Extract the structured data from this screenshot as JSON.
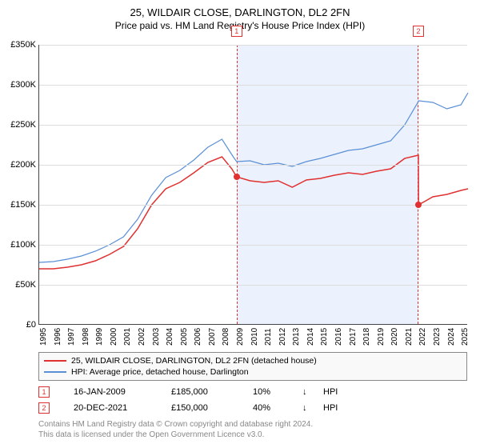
{
  "title": "25, WILDAIR CLOSE, DARLINGTON, DL2 2FN",
  "subtitle": "Price paid vs. HM Land Registry's House Price Index (HPI)",
  "chart": {
    "type": "line",
    "ylim": [
      0,
      350000
    ],
    "ytick_step": 50000,
    "yticks_labels": [
      "£0",
      "£50K",
      "£100K",
      "£150K",
      "£200K",
      "£250K",
      "£300K",
      "£350K"
    ],
    "x_start_year": 1995,
    "x_end_year": 2025.5,
    "x_ticks": [
      1995,
      1996,
      1997,
      1998,
      1999,
      2000,
      2001,
      2002,
      2003,
      2004,
      2005,
      2006,
      2007,
      2008,
      2009,
      2010,
      2011,
      2012,
      2013,
      2014,
      2015,
      2016,
      2017,
      2018,
      2019,
      2020,
      2021,
      2022,
      2023,
      2024,
      2025
    ],
    "grid_color": "#dcdcdc",
    "background_color": "#ffffff",
    "shaded_region": {
      "start": 2009.04,
      "end": 2021.97,
      "fill": "rgba(100,149,237,0.12)",
      "border": "#e03030"
    },
    "series": [
      {
        "name": "property",
        "label": "25, WILDAIR CLOSE, DARLINGTON, DL2 2FN (detached house)",
        "color": "#e03030",
        "width": 1.5,
        "data": [
          [
            1995,
            70000
          ],
          [
            1996,
            70000
          ],
          [
            1997,
            72000
          ],
          [
            1998,
            75000
          ],
          [
            1999,
            80000
          ],
          [
            2000,
            88000
          ],
          [
            2001,
            98000
          ],
          [
            2002,
            120000
          ],
          [
            2003,
            150000
          ],
          [
            2004,
            170000
          ],
          [
            2005,
            178000
          ],
          [
            2006,
            190000
          ],
          [
            2007,
            203000
          ],
          [
            2008,
            210000
          ],
          [
            2008.7,
            195000
          ],
          [
            2009.04,
            185000
          ],
          [
            2010,
            180000
          ],
          [
            2011,
            178000
          ],
          [
            2012,
            180000
          ],
          [
            2013,
            172000
          ],
          [
            2014,
            181000
          ],
          [
            2015,
            183000
          ],
          [
            2016,
            187000
          ],
          [
            2017,
            190000
          ],
          [
            2018,
            188000
          ],
          [
            2019,
            192000
          ],
          [
            2020,
            195000
          ],
          [
            2021,
            208000
          ],
          [
            2021.97,
            212000
          ],
          [
            2021.98,
            150000
          ],
          [
            2022.5,
            155000
          ],
          [
            2023,
            160000
          ],
          [
            2024,
            163000
          ],
          [
            2025,
            168000
          ],
          [
            2025.5,
            170000
          ]
        ]
      },
      {
        "name": "hpi",
        "label": "HPI: Average price, detached house, Darlington",
        "color": "#5a8fd6",
        "width": 1.2,
        "data": [
          [
            1995,
            78000
          ],
          [
            1996,
            79000
          ],
          [
            1997,
            82000
          ],
          [
            1998,
            86000
          ],
          [
            1999,
            92000
          ],
          [
            2000,
            100000
          ],
          [
            2001,
            110000
          ],
          [
            2002,
            132000
          ],
          [
            2003,
            162000
          ],
          [
            2004,
            184000
          ],
          [
            2005,
            193000
          ],
          [
            2006,
            206000
          ],
          [
            2007,
            222000
          ],
          [
            2008,
            232000
          ],
          [
            2008.8,
            210000
          ],
          [
            2009.04,
            204000
          ],
          [
            2010,
            205000
          ],
          [
            2011,
            200000
          ],
          [
            2012,
            202000
          ],
          [
            2013,
            198000
          ],
          [
            2014,
            204000
          ],
          [
            2015,
            208000
          ],
          [
            2016,
            213000
          ],
          [
            2017,
            218000
          ],
          [
            2018,
            220000
          ],
          [
            2019,
            225000
          ],
          [
            2020,
            230000
          ],
          [
            2021,
            250000
          ],
          [
            2022,
            280000
          ],
          [
            2023,
            278000
          ],
          [
            2024,
            270000
          ],
          [
            2025,
            275000
          ],
          [
            2025.5,
            290000
          ]
        ]
      }
    ],
    "markers": [
      {
        "n": "1",
        "year": 2009.04,
        "price": 185000,
        "color": "#e03030"
      },
      {
        "n": "2",
        "year": 2021.97,
        "price": 150000,
        "color": "#e03030"
      }
    ]
  },
  "transactions": [
    {
      "n": "1",
      "date": "16-JAN-2009",
      "price": "£185,000",
      "pct": "10%",
      "dir": "↓",
      "vs": "HPI",
      "color": "#e03030"
    },
    {
      "n": "2",
      "date": "20-DEC-2021",
      "price": "£150,000",
      "pct": "40%",
      "dir": "↓",
      "vs": "HPI",
      "color": "#e03030"
    }
  ],
  "footer": {
    "line1": "Contains HM Land Registry data © Crown copyright and database right 2024.",
    "line2": "This data is licensed under the Open Government Licence v3.0."
  }
}
